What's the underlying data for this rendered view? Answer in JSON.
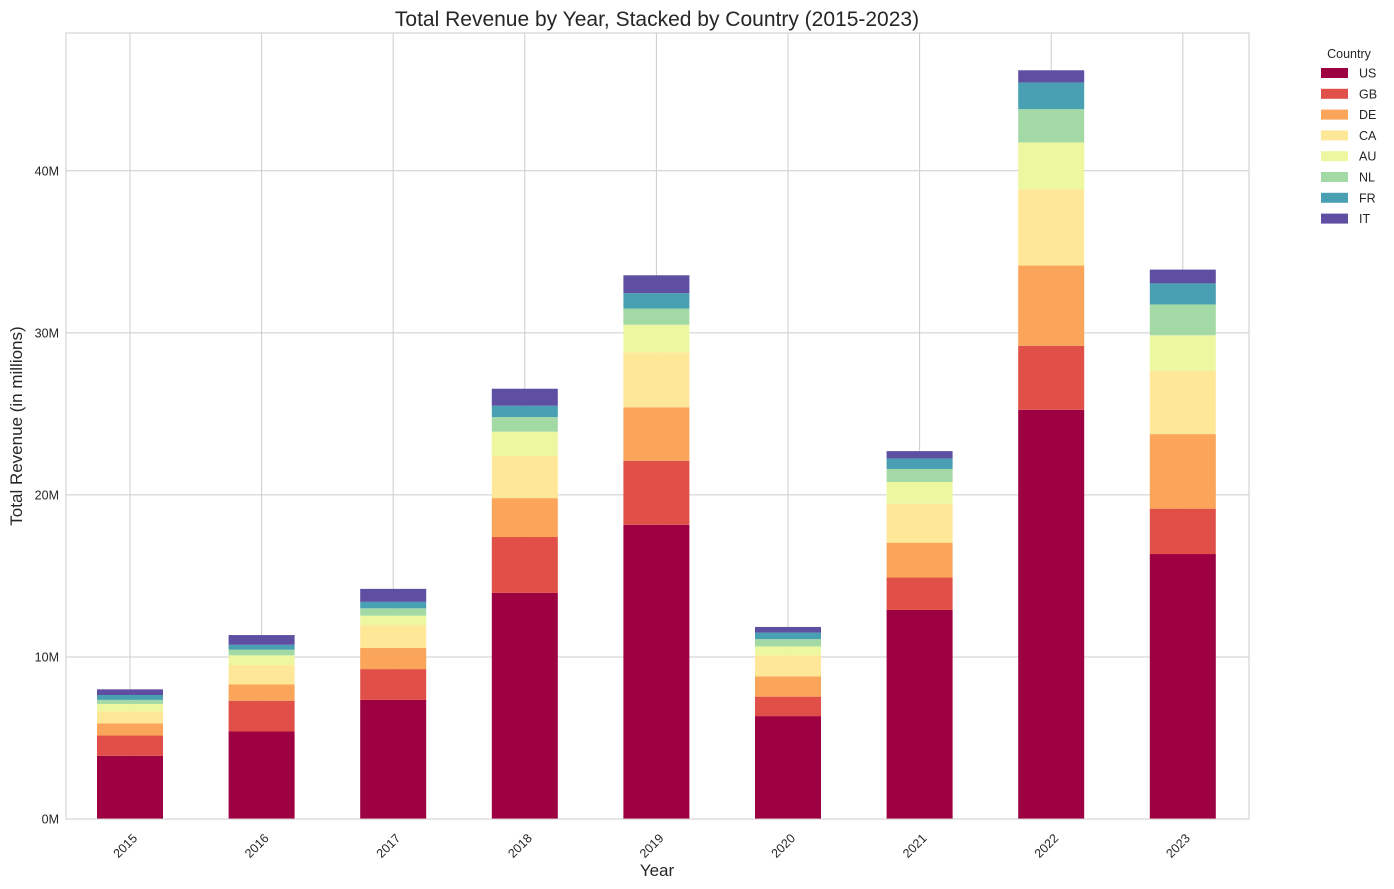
{
  "chart_data": {
    "type": "bar",
    "stacked": true,
    "title": "Total Revenue by Year, Stacked by Country (2015-2023)",
    "xlabel": "Year",
    "ylabel": "Total Revenue (in millions)",
    "ylim": [
      0,
      48.5
    ],
    "yticks": [
      0,
      10,
      20,
      30,
      40
    ],
    "ytick_labels": [
      "0M",
      "10M",
      "20M",
      "30M",
      "40M"
    ],
    "grid": true,
    "legend": {
      "title": "Country",
      "placement": "outside-top-right"
    },
    "categories": [
      "2015",
      "2016",
      "2017",
      "2018",
      "2019",
      "2020",
      "2021",
      "2022",
      "2023"
    ],
    "series": [
      {
        "name": "US",
        "color": "#9e0142",
        "values": [
          3.9,
          5.4,
          7.35,
          13.95,
          18.15,
          6.35,
          12.9,
          25.25,
          16.35
        ]
      },
      {
        "name": "GB",
        "color": "#e04f48",
        "values": [
          1.25,
          1.9,
          1.9,
          3.45,
          3.95,
          1.2,
          2.0,
          3.95,
          2.8
        ]
      },
      {
        "name": "DE",
        "color": "#fba55b",
        "values": [
          0.75,
          1.0,
          1.3,
          2.4,
          3.3,
          1.25,
          2.15,
          4.95,
          4.6
        ]
      },
      {
        "name": "CA",
        "color": "#fee797",
        "values": [
          0.75,
          1.2,
          1.4,
          2.6,
          3.4,
          1.3,
          2.4,
          4.7,
          3.9
        ]
      },
      {
        "name": "AU",
        "color": "#edf7a0",
        "values": [
          0.45,
          0.6,
          0.6,
          1.5,
          1.7,
          0.55,
          1.35,
          2.9,
          2.2
        ]
      },
      {
        "name": "NL",
        "color": "#a3d9a4",
        "values": [
          0.25,
          0.35,
          0.45,
          0.9,
          1.0,
          0.45,
          0.8,
          2.05,
          1.9
        ]
      },
      {
        "name": "FR",
        "color": "#48a0b2",
        "values": [
          0.3,
          0.3,
          0.4,
          0.7,
          0.95,
          0.4,
          0.65,
          1.65,
          1.3
        ]
      },
      {
        "name": "IT",
        "color": "#5e4fa2",
        "values": [
          0.35,
          0.6,
          0.8,
          1.05,
          1.1,
          0.35,
          0.45,
          0.75,
          0.85
        ]
      }
    ]
  }
}
